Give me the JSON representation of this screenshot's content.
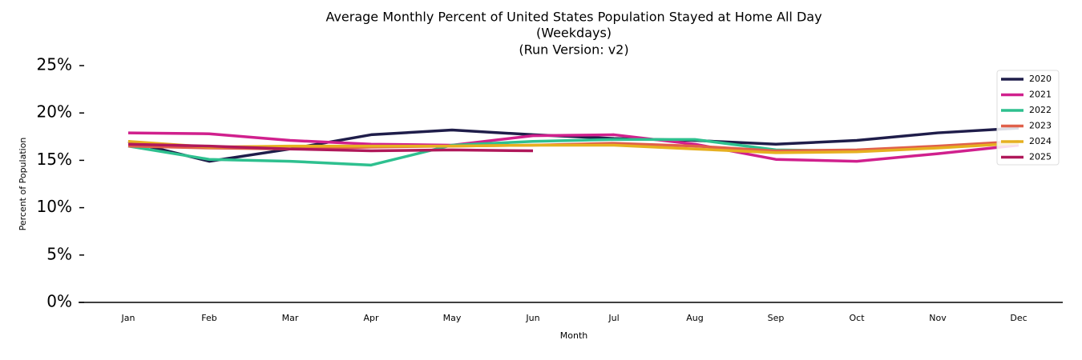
{
  "chart_data": {
    "type": "line",
    "title": "Average Monthly Percent of United States Population Stayed at Home All Day",
    "subtitles": [
      "(Weekdays)",
      "(Run Version: v2)"
    ],
    "x_label": "Month",
    "y_label": "Percent of Population",
    "categories": [
      "Jan",
      "Feb",
      "Mar",
      "Apr",
      "May",
      "Jun",
      "Jul",
      "Aug",
      "Sep",
      "Oct",
      "Nov",
      "Dec"
    ],
    "series": [
      {
        "name": "2020",
        "color": "#1f1d4a",
        "values": [
          17.0,
          14.9,
          16.2,
          17.7,
          18.2,
          17.7,
          17.3,
          17.1,
          16.7,
          17.1,
          17.9,
          18.4
        ]
      },
      {
        "name": "2021",
        "color": "#d0208d",
        "values": [
          17.9,
          17.8,
          17.1,
          16.7,
          16.6,
          17.6,
          17.7,
          16.7,
          15.1,
          14.9,
          15.7,
          16.6
        ]
      },
      {
        "name": "2022",
        "color": "#2ec08f",
        "values": [
          16.5,
          15.1,
          14.9,
          14.5,
          16.6,
          17.0,
          17.2,
          17.2,
          16.1,
          16.0,
          16.4,
          17.0
        ]
      },
      {
        "name": "2023",
        "color": "#e0604a",
        "values": [
          16.5,
          16.3,
          16.2,
          16.4,
          16.5,
          16.6,
          16.8,
          16.5,
          16.0,
          16.1,
          16.5,
          17.0
        ]
      },
      {
        "name": "2024",
        "color": "#e6b020",
        "values": [
          17.0,
          16.4,
          16.5,
          16.5,
          16.5,
          16.6,
          16.6,
          16.2,
          15.8,
          15.9,
          16.3,
          16.8
        ]
      },
      {
        "name": "2025",
        "color": "#b0185a",
        "values": [
          16.7,
          16.5,
          16.2,
          16.0,
          16.1,
          16.0,
          null,
          null,
          null,
          null,
          null,
          null
        ]
      }
    ],
    "ylim": [
      0,
      25
    ],
    "yticks": [
      {
        "value": 0,
        "label": "0%"
      },
      {
        "value": 5,
        "label": "5%"
      },
      {
        "value": 10,
        "label": "10%"
      },
      {
        "value": 15,
        "label": "15%"
      },
      {
        "value": 20,
        "label": "20%"
      },
      {
        "value": 25,
        "label": "25%"
      }
    ],
    "grid": false,
    "legend": "upper right"
  }
}
